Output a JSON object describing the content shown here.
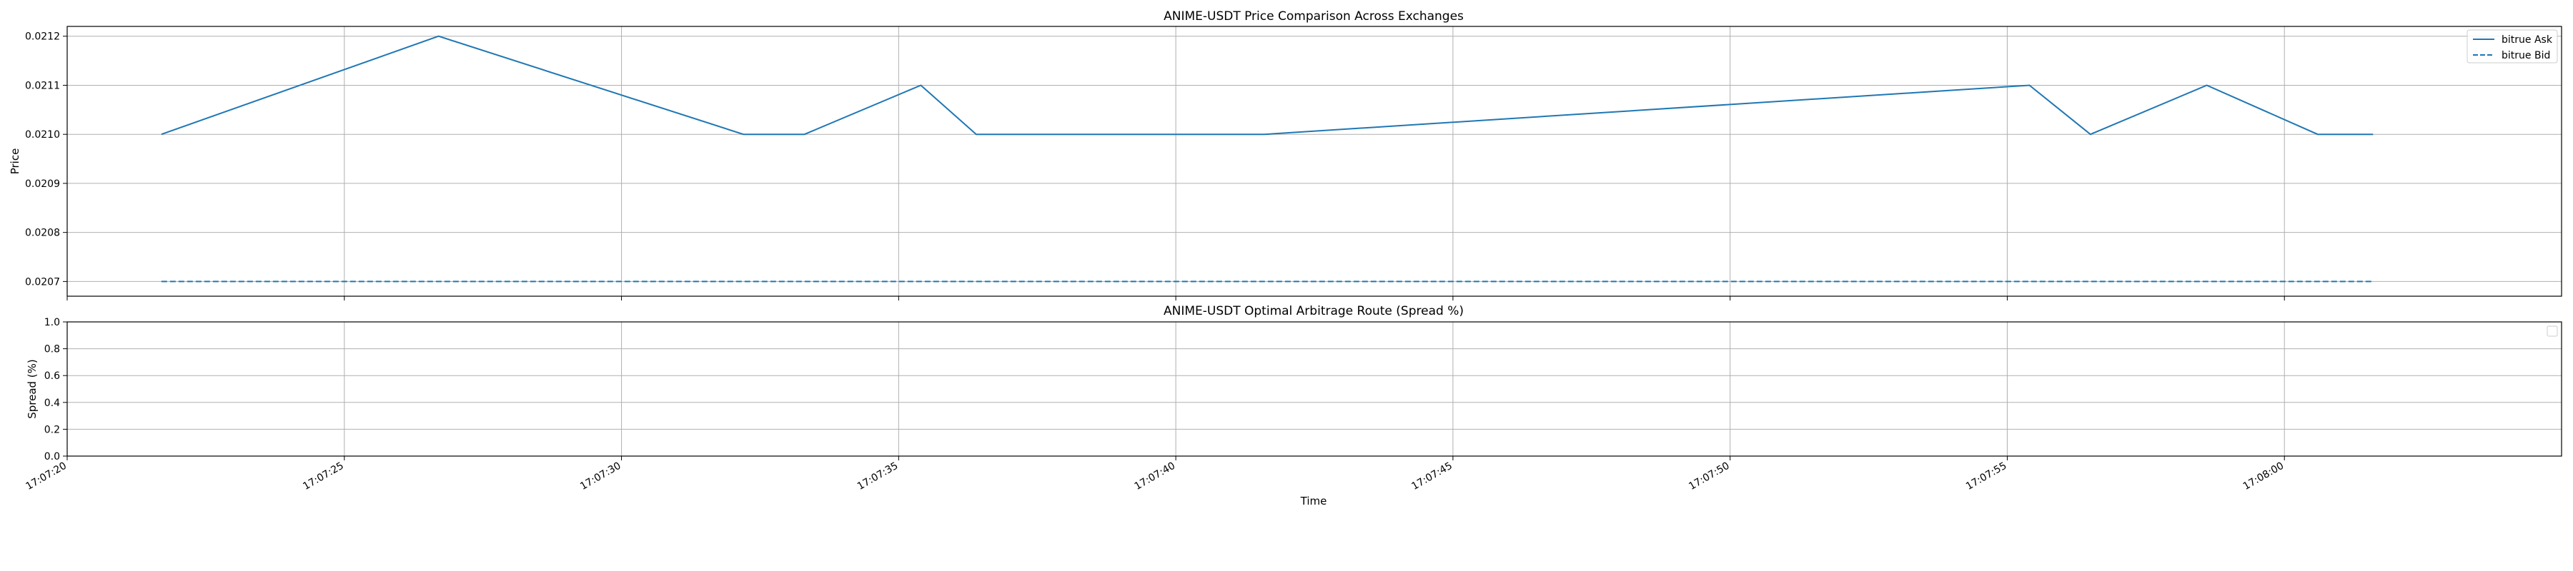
{
  "chart_data": [
    {
      "type": "line",
      "title": "ANIME-USDT Price Comparison Across Exchanges",
      "xlabel": "",
      "ylabel": "Price",
      "xlim": [
        "17:07:20",
        "17:08:05"
      ],
      "ylim": [
        0.02067,
        0.02122
      ],
      "y_ticks": [
        "0.0207",
        "0.0208",
        "0.0209",
        "0.0210",
        "0.0211",
        "0.0212"
      ],
      "y_tick_values": [
        0.0207,
        0.0208,
        0.0209,
        0.021,
        0.0211,
        0.0212
      ],
      "grid": true,
      "legend_position": "top-right",
      "series": [
        {
          "name": "bitrue Ask",
          "style": "solid",
          "color": "#1f77b4",
          "x": [
            "17:07:21.7",
            "17:07:26.7",
            "17:07:32.2",
            "17:07:33.3",
            "17:07:35.4",
            "17:07:36.4",
            "17:07:41.6",
            "17:07:55.4",
            "17:07:56.5",
            "17:07:58.6",
            "17:08:00.6",
            "17:08:01.6"
          ],
          "values": [
            0.021,
            0.0212,
            0.021,
            0.021,
            0.0211,
            0.021,
            0.021,
            0.0211,
            0.021,
            0.0211,
            0.021,
            0.021
          ]
        },
        {
          "name": "bitrue Bid",
          "style": "dashed",
          "color": "#1f77b4",
          "x": [
            "17:07:21.7",
            "17:08:01.6"
          ],
          "values": [
            0.0207,
            0.0207
          ]
        }
      ]
    },
    {
      "type": "line",
      "title": "ANIME-USDT Optimal Arbitrage Route (Spread %)",
      "xlabel": "Time",
      "ylabel": "Spread (%)",
      "xlim": [
        "17:07:20",
        "17:08:05"
      ],
      "ylim": [
        0.0,
        1.0
      ],
      "y_ticks": [
        "0.0",
        "0.2",
        "0.4",
        "0.6",
        "0.8",
        "1.0"
      ],
      "y_tick_values": [
        0.0,
        0.2,
        0.4,
        0.6,
        0.8,
        1.0
      ],
      "x_ticks": [
        "17:07:20",
        "17:07:25",
        "17:07:30",
        "17:07:35",
        "17:07:40",
        "17:07:45",
        "17:07:50",
        "17:07:55",
        "17:08:00"
      ],
      "grid": true,
      "legend_position": "top-right",
      "series": []
    }
  ]
}
